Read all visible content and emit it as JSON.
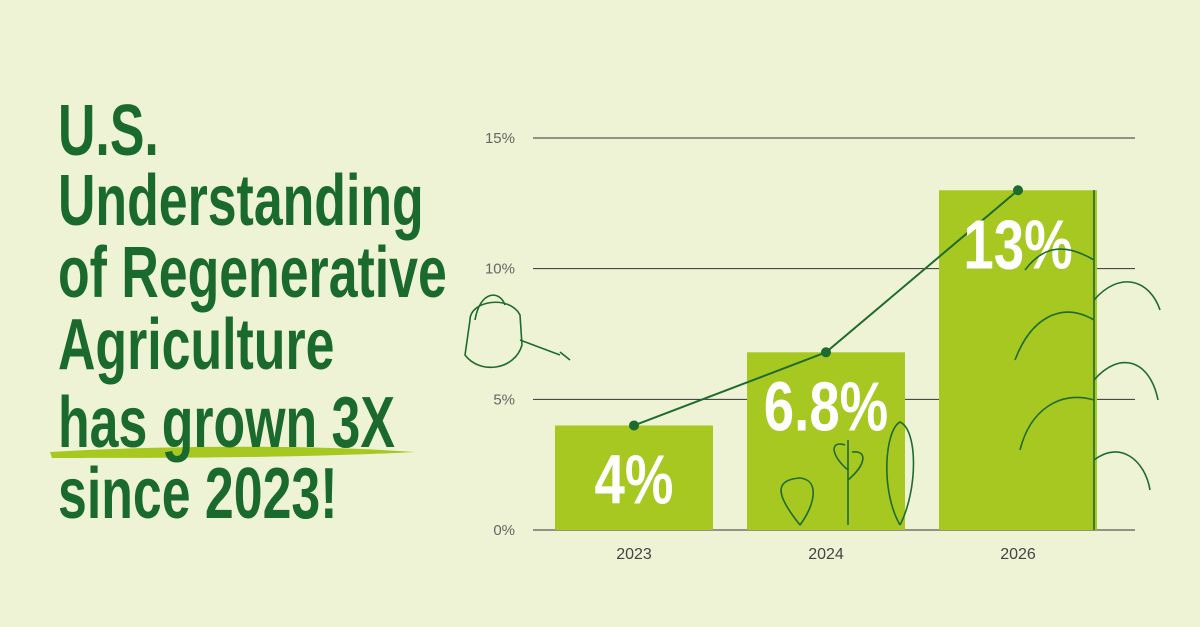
{
  "chart_data": {
    "type": "bar",
    "title_lines": [
      "U.S.",
      "Understanding",
      "of Regenerative",
      "Agriculture",
      "has grown 3X",
      "since 2023!"
    ],
    "categories": [
      "2023",
      "2024",
      "2026"
    ],
    "values": [
      4,
      6.8,
      13
    ],
    "value_labels": [
      "4%",
      "6.8%",
      "13%"
    ],
    "color": "#a6c821",
    "line_color": "#1e6b2e",
    "trend_line": true,
    "ylim": [
      0,
      15
    ],
    "yticks": [
      {
        "value": 0,
        "label": "0%"
      },
      {
        "value": 5,
        "label": "5%"
      },
      {
        "value": 10,
        "label": "10%"
      },
      {
        "value": 15,
        "label": "15%"
      }
    ],
    "grid": true
  }
}
